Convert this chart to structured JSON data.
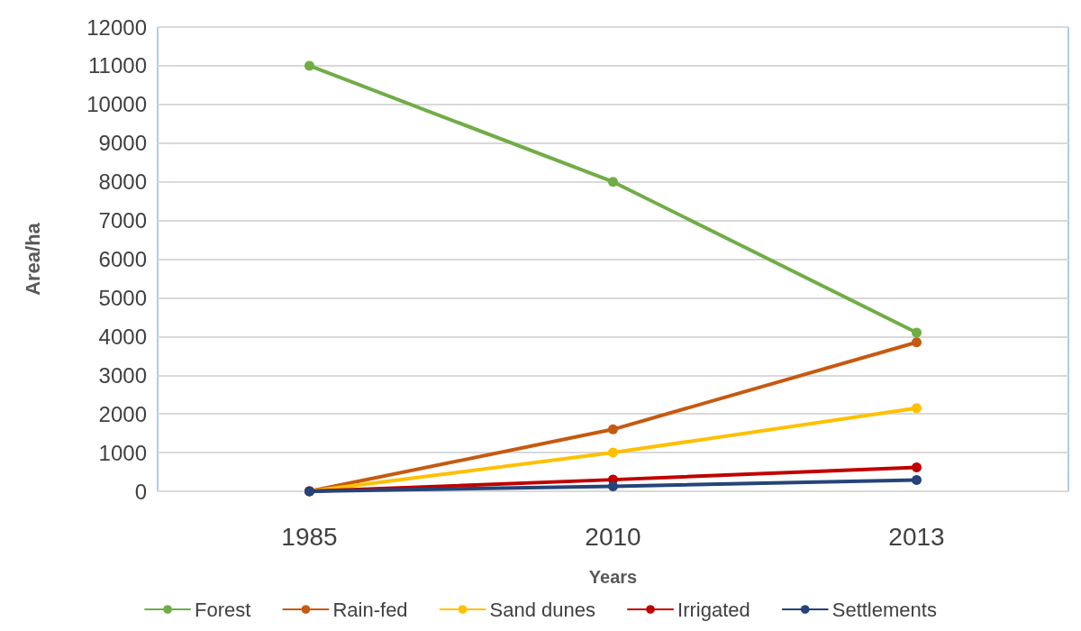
{
  "chart_data": {
    "type": "line",
    "xlabel": "Years",
    "ylabel": "Area/ha",
    "categories": [
      "1985",
      "2010",
      "2013"
    ],
    "series": [
      {
        "name": "Forest",
        "color": "#70ad47",
        "values": [
          11000,
          8000,
          4100
        ]
      },
      {
        "name": "Rain-fed",
        "color": "#c55a11",
        "values": [
          0,
          1600,
          3850
        ]
      },
      {
        "name": "Sand dunes",
        "color": "#ffc000",
        "values": [
          0,
          1000,
          2150
        ]
      },
      {
        "name": "Irrigated",
        "color": "#c00000",
        "values": [
          0,
          300,
          620
        ]
      },
      {
        "name": "Settlements",
        "color": "#264478",
        "values": [
          0,
          130,
          290
        ]
      }
    ],
    "ylim": [
      0,
      12000
    ],
    "yticks": [
      0,
      1000,
      2000,
      3000,
      4000,
      5000,
      6000,
      7000,
      8000,
      9000,
      10000,
      11000,
      12000
    ],
    "grid": "y",
    "legend": "bottom",
    "marker": "circle",
    "line_style": "solid"
  }
}
